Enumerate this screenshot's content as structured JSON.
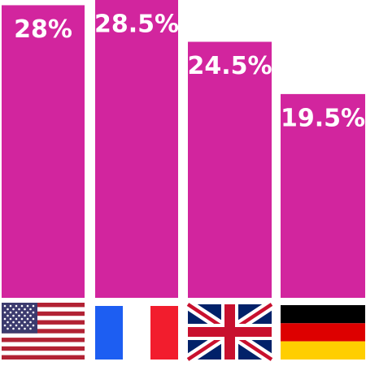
{
  "chart_data": {
    "type": "bar",
    "categories": [
      "United States",
      "France",
      "United Kingdom",
      "Germany"
    ],
    "values": [
      28,
      28.5,
      24.5,
      19.5
    ],
    "value_labels": [
      "28%",
      "28.5%",
      "24.5%",
      "19.5%"
    ],
    "category_icons": [
      "us-flag-icon",
      "france-flag-icon",
      "uk-flag-icon",
      "germany-flag-icon"
    ],
    "bar_color": "#d2259e",
    "label_color": "#ffffff",
    "title": "",
    "xlabel": "",
    "ylabel": "",
    "ylim": [
      0,
      28.5
    ],
    "grid": false
  }
}
